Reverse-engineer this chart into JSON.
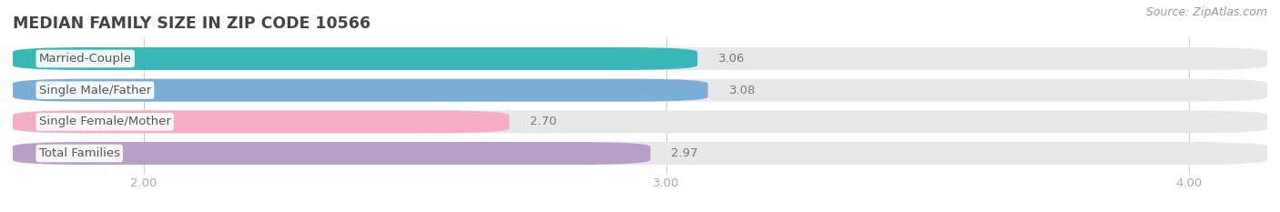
{
  "title": "MEDIAN FAMILY SIZE IN ZIP CODE 10566",
  "source": "Source: ZipAtlas.com",
  "categories": [
    "Married-Couple",
    "Single Male/Father",
    "Single Female/Mother",
    "Total Families"
  ],
  "values": [
    3.06,
    3.08,
    2.7,
    2.97
  ],
  "bar_colors": [
    "#3ab8b8",
    "#7aaed6",
    "#f4aec8",
    "#b89ec8"
  ],
  "bar_bg_color": "#e8e8e8",
  "xlim_data": [
    1.75,
    4.15
  ],
  "xstart": 1.75,
  "xticks": [
    2.0,
    3.0,
    4.0
  ],
  "xtick_labels": [
    "2.00",
    "3.00",
    "4.00"
  ],
  "background_color": "#ffffff",
  "title_fontsize": 12.5,
  "label_fontsize": 9.5,
  "value_fontsize": 9.5,
  "source_fontsize": 9,
  "bar_height": 0.72,
  "title_color": "#444444",
  "label_color": "#555555",
  "value_color": "#777777",
  "tick_color": "#aaaaaa",
  "source_color": "#999999"
}
